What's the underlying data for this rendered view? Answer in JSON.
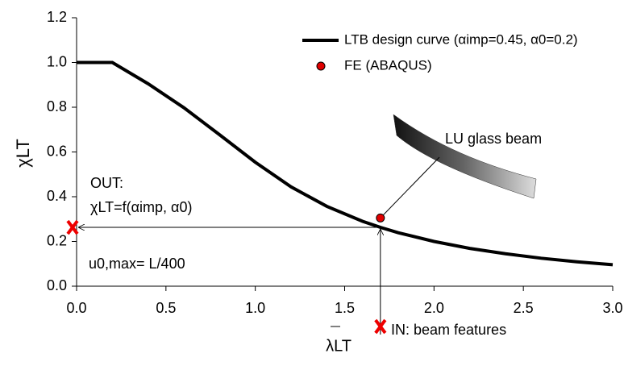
{
  "chart_data": {
    "type": "line",
    "xlabel": "λLT",
    "ylabel": "χLT",
    "xlim": [
      0,
      3
    ],
    "ylim": [
      0,
      1.2
    ],
    "xticks": [
      {
        "value": 0,
        "label": "0.0"
      },
      0.5,
      {
        "value": 1,
        "label": "1.0"
      },
      1.5,
      {
        "value": 2,
        "label": "2.0"
      },
      2.5,
      {
        "value": 3,
        "label": "3.0"
      }
    ],
    "yticks": [
      {
        "value": 0,
        "label": "0.0"
      },
      0.2,
      0.4,
      0.6,
      0.8,
      {
        "value": 1,
        "label": "1.0"
      },
      1.2
    ],
    "legend": "upper right",
    "series": [
      {
        "name": "LTB design curve (αimp=0.45, α0=0.2)",
        "color": "#000000",
        "type": "line",
        "x": [
          0,
          0.2,
          0.4,
          0.6,
          0.8,
          1.0,
          1.2,
          1.4,
          1.6,
          1.7,
          1.8,
          2.0,
          2.2,
          2.4,
          2.6,
          2.8,
          3.0
        ],
        "values": [
          1,
          1,
          0.905,
          0.798,
          0.677,
          0.554,
          0.444,
          0.357,
          0.29,
          0.263,
          0.239,
          0.2,
          0.169,
          0.145,
          0.125,
          0.109,
          0.096
        ]
      },
      {
        "name": "FE (ABAQUS)",
        "color": "#e00000",
        "type": "scatter",
        "x": [
          1.7
        ],
        "values": [
          0.305
        ]
      }
    ],
    "annotations": {
      "out": "OUT:",
      "out_formula": "χLT=f(αimp, α0)",
      "u0": "u0,max= L/400",
      "beam": "LU glass beam",
      "in": "IN: beam features"
    }
  }
}
